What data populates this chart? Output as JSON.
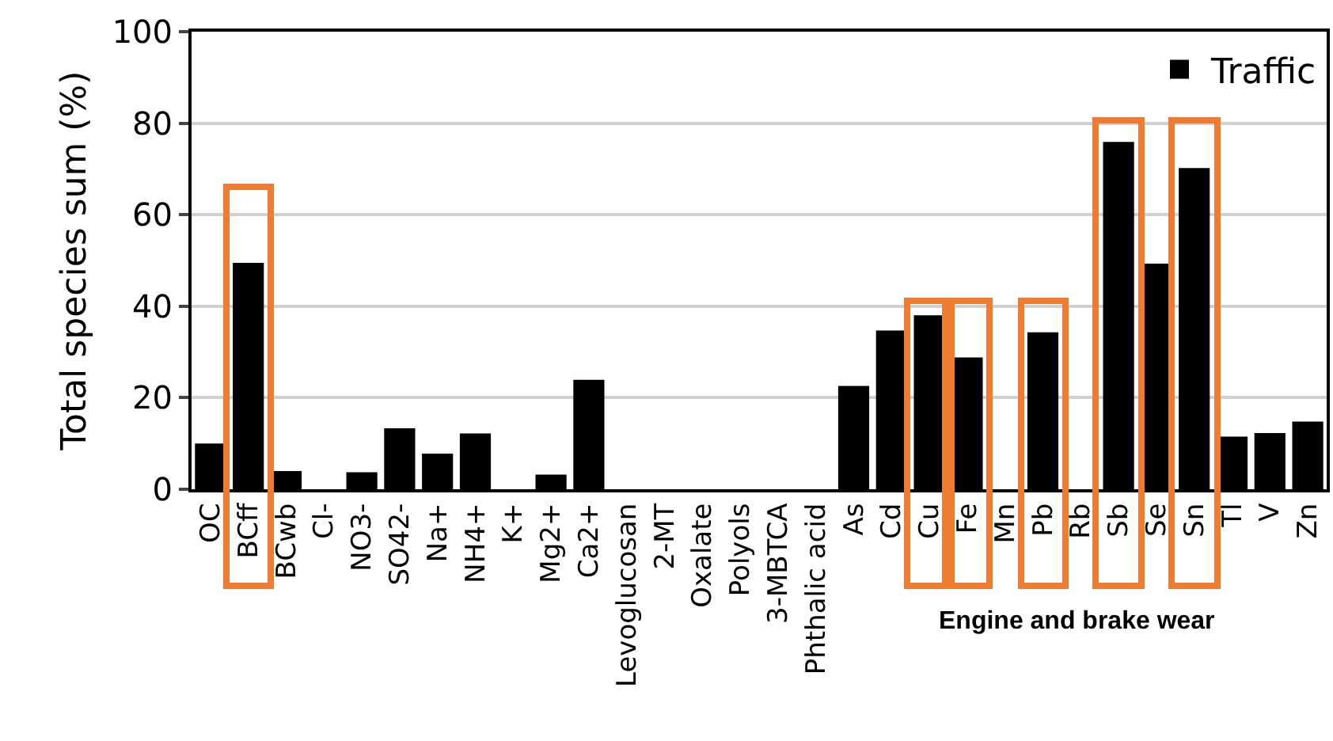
{
  "chart_data": {
    "type": "bar",
    "ylabel": "Total species sum (%)",
    "categories": [
      "OC",
      "BCff",
      "BCwb",
      "Cl-",
      "NO3-",
      "SO42-",
      "Na+",
      "NH4+",
      "K+",
      "Mg2+",
      "Ca2+",
      "Levoglucosan",
      "2-MT",
      "Oxalate",
      "Polyols",
      "3-MBTCA",
      "Phthalic acid",
      "As",
      "Cd",
      "Cu",
      "Fe",
      "Mn",
      "Pb",
      "Rb",
      "Sb",
      "Se",
      "Sn",
      "Tl",
      "V",
      "Zn"
    ],
    "series": [
      {
        "name": "Traffic",
        "color": "#000000",
        "values": [
          10,
          49.5,
          4,
          0,
          3.7,
          13.3,
          7.8,
          12.2,
          0,
          3.2,
          23.9,
          0,
          0,
          0,
          0,
          0,
          0,
          22.6,
          34.7,
          38,
          28.8,
          0,
          34.3,
          0,
          75.9,
          49.3,
          70.2,
          11.5,
          12.3,
          14.8
        ]
      }
    ],
    "ylim": [
      0,
      100
    ],
    "yticks": [
      0,
      20,
      40,
      60,
      80,
      100
    ],
    "grid": "y",
    "legend": "top right",
    "annotations": [
      "Engine and brake wear"
    ]
  }
}
